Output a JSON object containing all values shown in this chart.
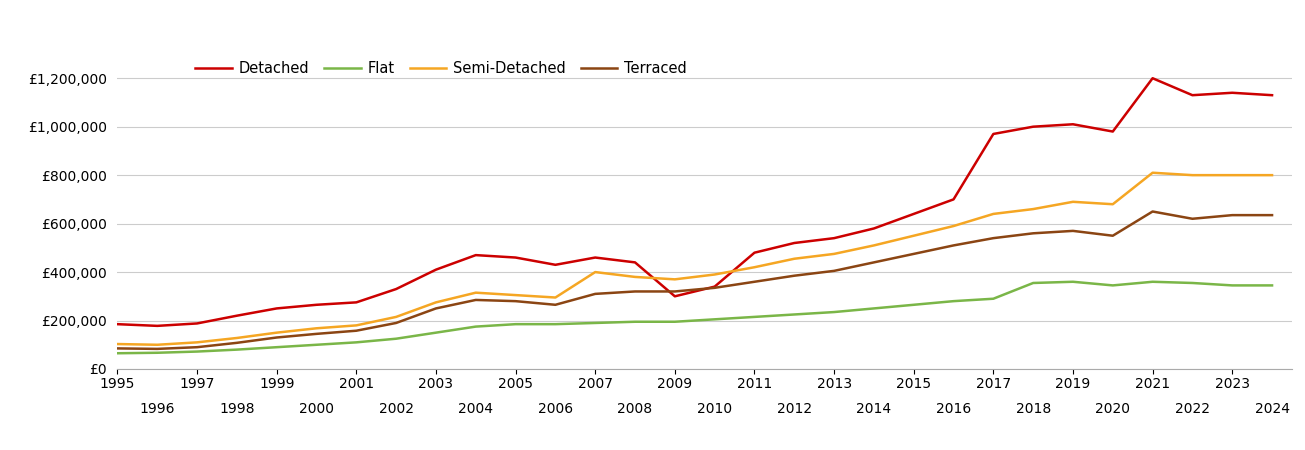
{
  "series": {
    "Detached": {
      "color": "#cc0000",
      "values": [
        185000,
        178000,
        188000,
        220000,
        250000,
        265000,
        275000,
        330000,
        410000,
        470000,
        460000,
        430000,
        460000,
        440000,
        300000,
        340000,
        480000,
        520000,
        540000,
        580000,
        640000,
        700000,
        970000,
        1000000,
        1010000,
        980000,
        1200000,
        1130000,
        1140000,
        1130000
      ]
    },
    "Flat": {
      "color": "#7ab648",
      "values": [
        65000,
        67000,
        72000,
        80000,
        90000,
        100000,
        110000,
        125000,
        150000,
        175000,
        185000,
        185000,
        190000,
        195000,
        195000,
        205000,
        215000,
        225000,
        235000,
        250000,
        265000,
        280000,
        290000,
        355000,
        360000,
        345000,
        360000,
        355000,
        345000,
        345000
      ]
    },
    "Semi-Detached": {
      "color": "#f5a623",
      "values": [
        103000,
        100000,
        110000,
        128000,
        150000,
        168000,
        180000,
        215000,
        275000,
        315000,
        305000,
        295000,
        400000,
        380000,
        370000,
        390000,
        420000,
        455000,
        475000,
        510000,
        550000,
        590000,
        640000,
        660000,
        690000,
        680000,
        810000,
        800000,
        800000,
        800000
      ]
    },
    "Terraced": {
      "color": "#8B4513",
      "values": [
        85000,
        83000,
        90000,
        108000,
        130000,
        145000,
        158000,
        190000,
        250000,
        285000,
        280000,
        265000,
        310000,
        320000,
        320000,
        335000,
        360000,
        385000,
        405000,
        440000,
        475000,
        510000,
        540000,
        560000,
        570000,
        550000,
        650000,
        620000,
        635000,
        635000
      ]
    }
  },
  "years": [
    1995,
    1996,
    1997,
    1998,
    1999,
    2000,
    2001,
    2002,
    2003,
    2004,
    2005,
    2006,
    2007,
    2008,
    2009,
    2010,
    2011,
    2012,
    2013,
    2014,
    2015,
    2016,
    2017,
    2018,
    2019,
    2020,
    2021,
    2022,
    2023,
    2024
  ],
  "yticks": [
    0,
    200000,
    400000,
    600000,
    800000,
    1000000,
    1200000
  ],
  "ylim": [
    0,
    1300000
  ],
  "background_color": "#ffffff",
  "grid_color": "#cccccc",
  "odd_years": [
    1995,
    1997,
    1999,
    2001,
    2003,
    2005,
    2007,
    2009,
    2011,
    2013,
    2015,
    2017,
    2019,
    2021,
    2023
  ],
  "even_years": [
    1996,
    1998,
    2000,
    2002,
    2004,
    2006,
    2008,
    2010,
    2012,
    2014,
    2016,
    2018,
    2020,
    2022,
    2024
  ],
  "legend_order": [
    "Detached",
    "Flat",
    "Semi-Detached",
    "Terraced"
  ]
}
